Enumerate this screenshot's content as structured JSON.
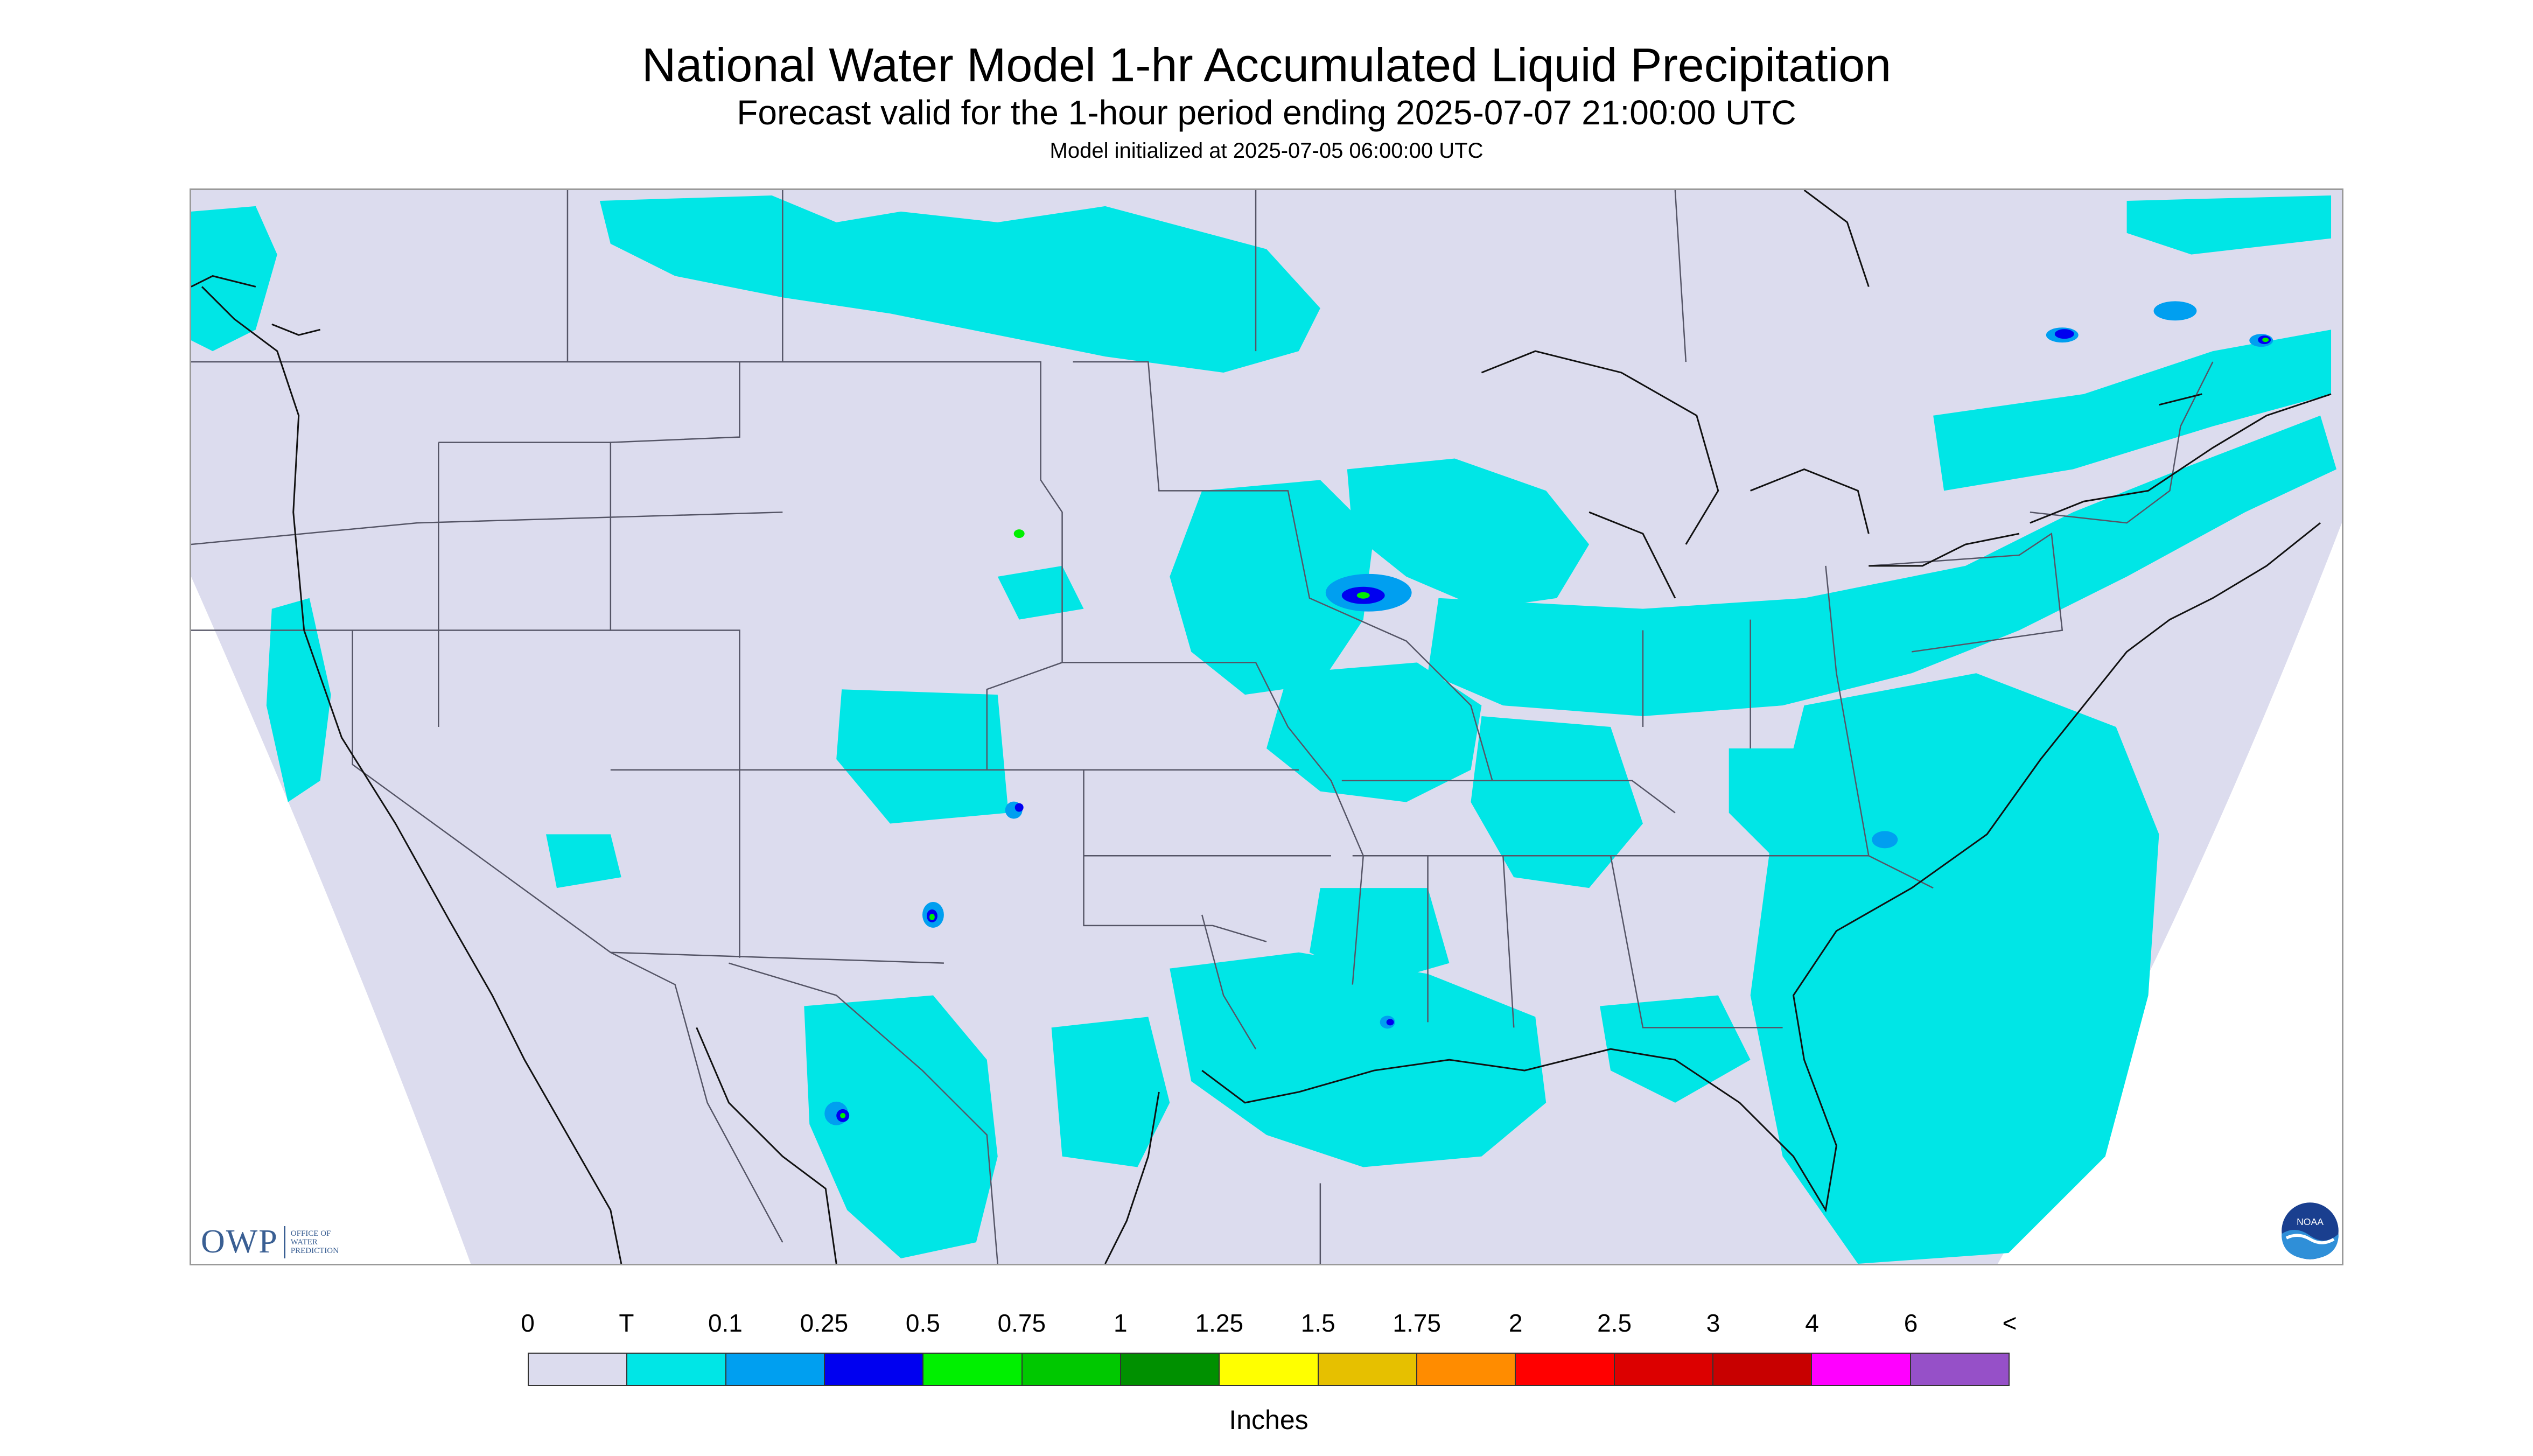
{
  "title": "National Water Model 1-hr Accumulated Liquid Precipitation",
  "subtitle": "Forecast valid for the 1-hour period ending 2025-07-07 21:00:00 UTC",
  "init_line": "Model initialized at 2025-07-05 06:00:00 UTC",
  "owp_logo": {
    "mark": "OWP",
    "name_lines": [
      "OFFICE OF",
      "WATER",
      "PREDICTION"
    ]
  },
  "noaa_logo": {
    "text": "NOAA"
  },
  "legend": {
    "labels": [
      "0",
      "T",
      "0.1",
      "0.25",
      "0.5",
      "0.75",
      "1",
      "1.25",
      "1.5",
      "1.75",
      "2",
      "2.5",
      "3",
      "4",
      "6",
      "<"
    ],
    "colors": [
      "#dcdcee",
      "#00e6e6",
      "#009ff0",
      "#0000f0",
      "#00f000",
      "#00c800",
      "#009000",
      "#ffff00",
      "#e6c000",
      "#ff8c00",
      "#ff0000",
      "#dc0000",
      "#c80000",
      "#ff00ff",
      "#9650c8"
    ],
    "units": "Inches"
  },
  "colors": {
    "no_data_white": "#ffffff",
    "background": "#dcdcee",
    "trace": "#00e6e6",
    "light": "#009ff0",
    "moderate": "#0000f0",
    "heavy": "#00f000",
    "border": "#555566"
  },
  "icons": [
    "owp-logo",
    "noaa-logo-icon"
  ]
}
